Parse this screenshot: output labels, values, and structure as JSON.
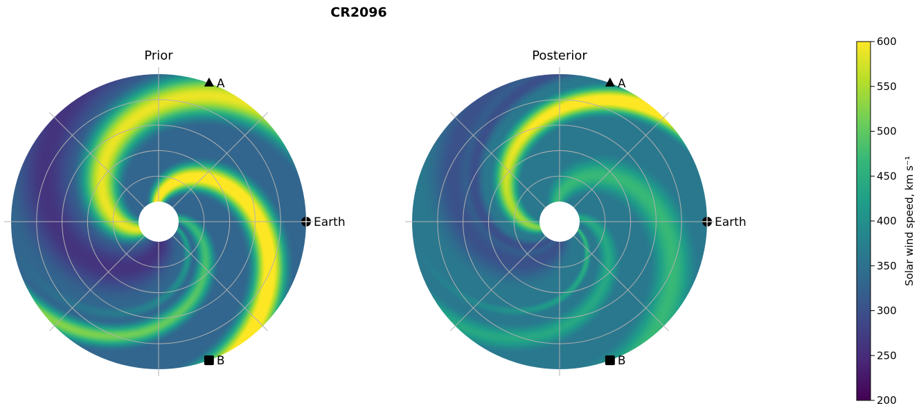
{
  "figure_title": "CR2096",
  "chart_data": [
    {
      "type": "heatmap",
      "projection": "polar",
      "title": "Prior",
      "markers": [
        {
          "label": "A",
          "shape": "triangle",
          "angle_deg": 70,
          "radius_frac": 1.0
        },
        {
          "label": "Earth",
          "shape": "circle",
          "angle_deg": 0,
          "radius_frac": 1.0
        },
        {
          "label": "B",
          "shape": "square",
          "angle_deg": -70,
          "radius_frac": 1.0
        }
      ],
      "grid": true,
      "radial_gridlines": 5,
      "angular_gridlines_deg": [
        0,
        45,
        90,
        135,
        180,
        225,
        270,
        315
      ]
    },
    {
      "type": "heatmap",
      "projection": "polar",
      "title": "Posterior",
      "markers": [
        {
          "label": "A",
          "shape": "triangle",
          "angle_deg": 70,
          "radius_frac": 1.0
        },
        {
          "label": "Earth",
          "shape": "circle",
          "angle_deg": 0,
          "radius_frac": 1.0
        },
        {
          "label": "B",
          "shape": "square",
          "angle_deg": -70,
          "radius_frac": 1.0
        }
      ],
      "grid": true,
      "radial_gridlines": 5,
      "angular_gridlines_deg": [
        0,
        45,
        90,
        135,
        180,
        225,
        270,
        315
      ]
    }
  ],
  "colorbar": {
    "label": "Solar wind speed, km s⁻¹",
    "min": 200,
    "max": 600,
    "ticks": [
      "200",
      "250",
      "300",
      "350",
      "400",
      "450",
      "500",
      "550",
      "600"
    ],
    "colormap": "viridis",
    "stops": [
      "#440154",
      "#482878",
      "#3e4989",
      "#31688e",
      "#26828e",
      "#1f9e89",
      "#35b779",
      "#6ece58",
      "#b5de2b",
      "#fde725"
    ]
  }
}
